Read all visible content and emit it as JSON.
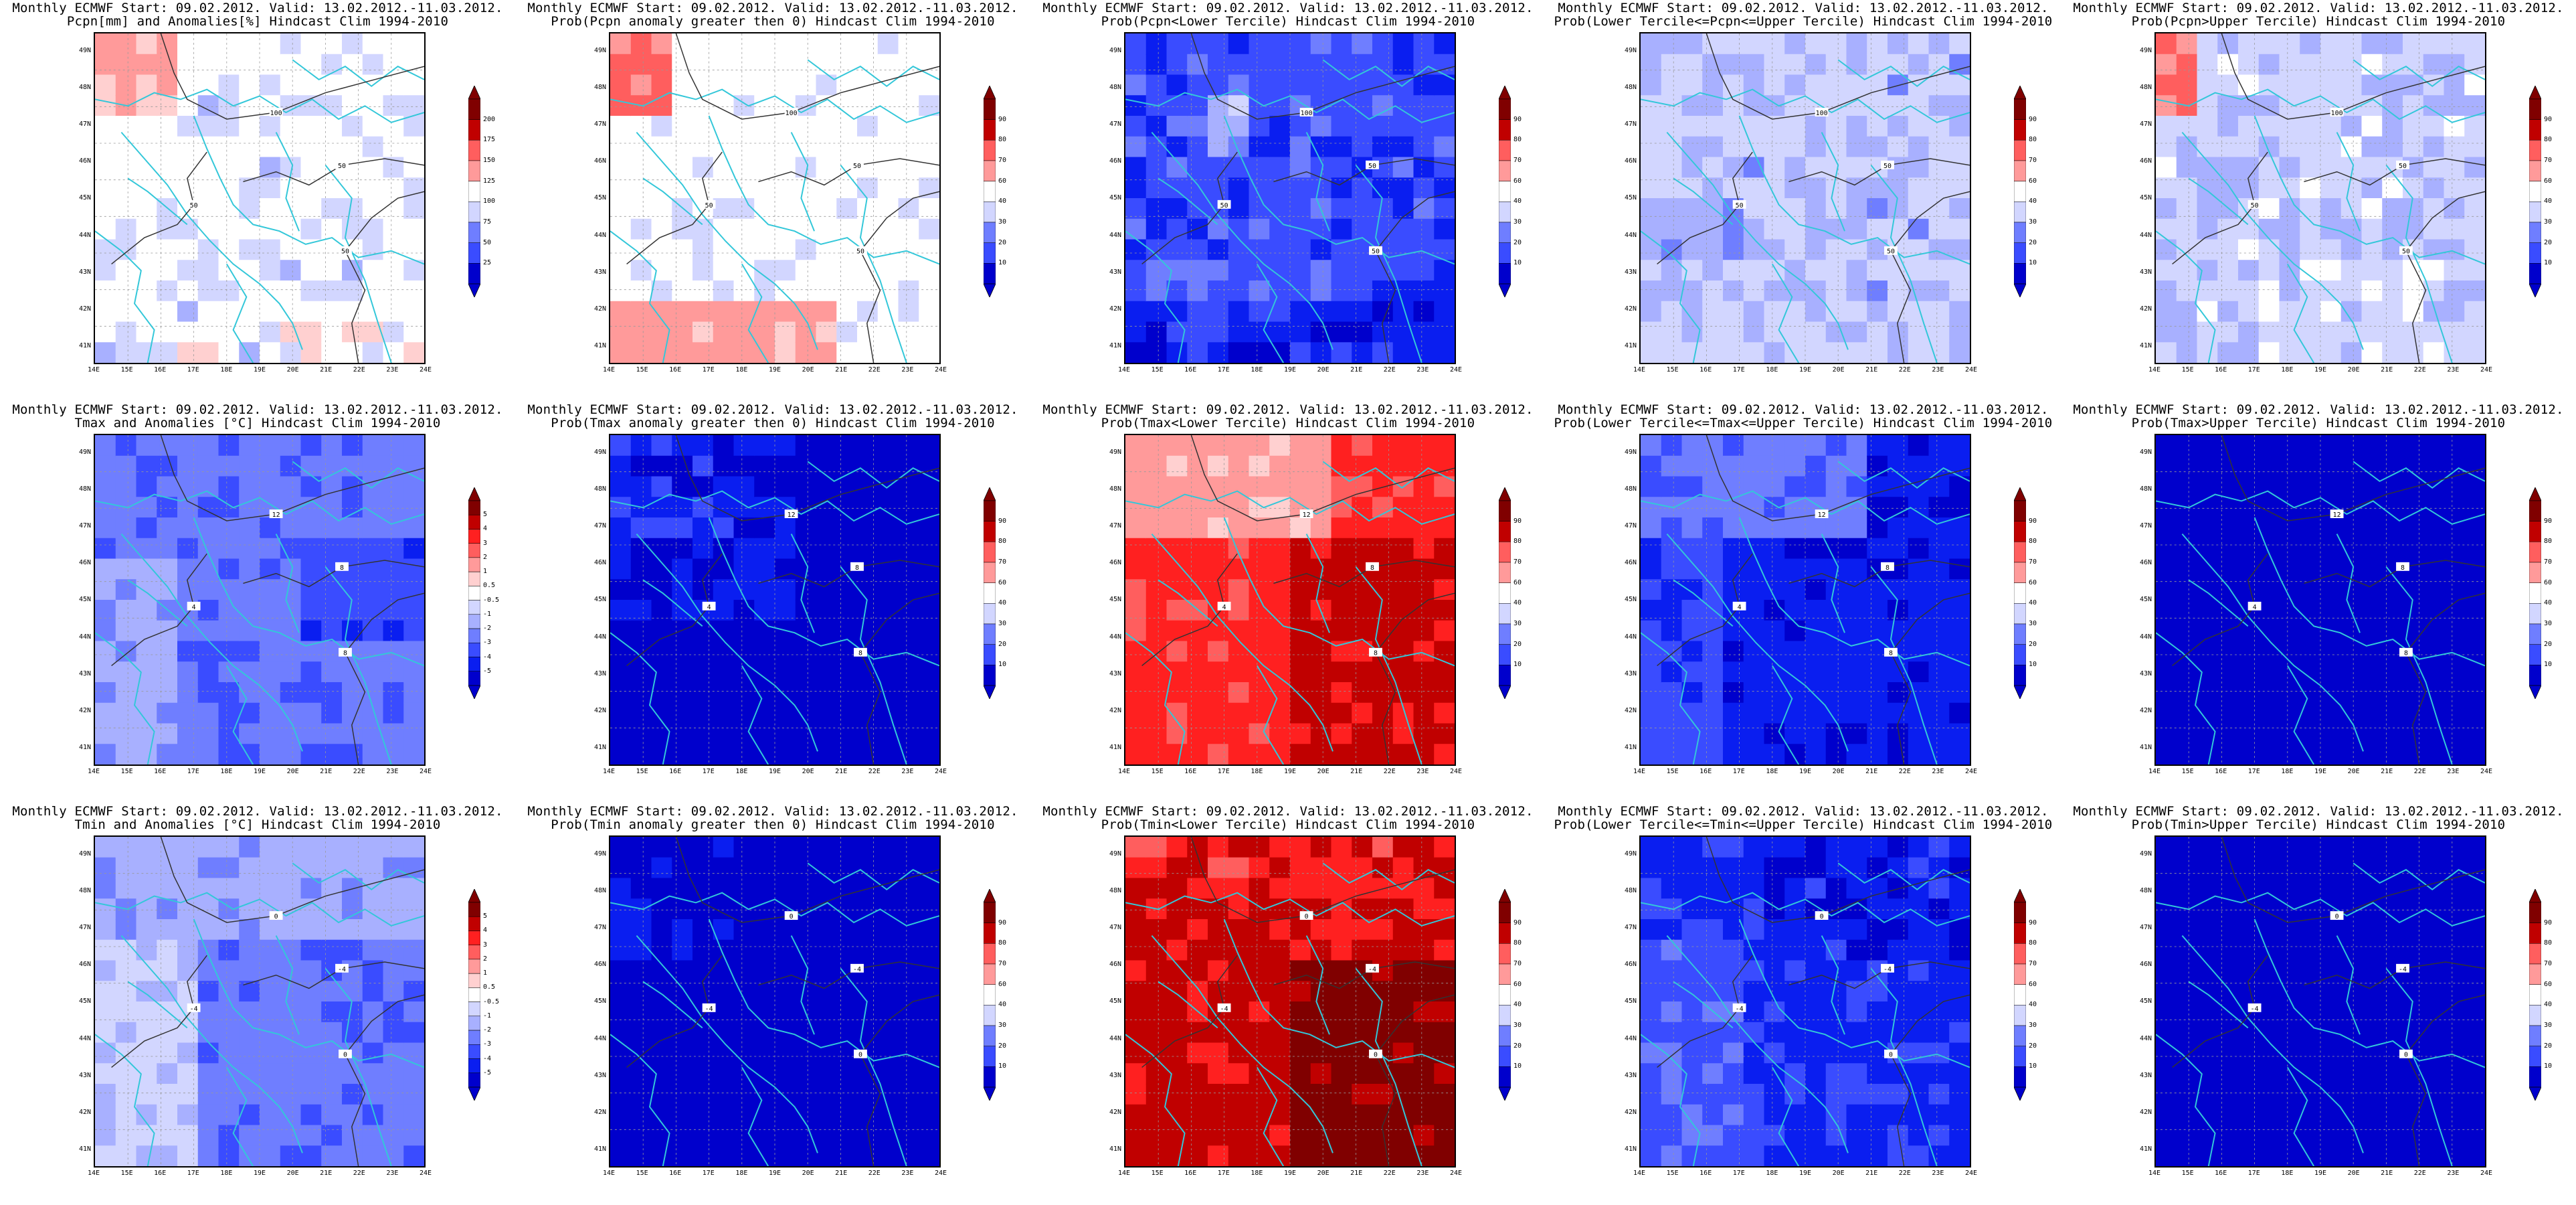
{
  "colors": {
    "levels": [
      "#0000cc",
      "#0a1ef0",
      "#3a4cff",
      "#6f7eff",
      "#a8b0ff",
      "#d2d6ff",
      "#ffffff",
      "#ffd0d0",
      "#ff9a9a",
      "#ff5e5e",
      "#ff2020",
      "#c00000",
      "#800000"
    ],
    "coast": "#33c7d9",
    "contour": "#333333"
  },
  "lat_labels": [
    "49N",
    "48N",
    "47N",
    "46N",
    "45N",
    "44N",
    "43N",
    "42N",
    "41N"
  ],
  "lon_labels": [
    "14E",
    "15E",
    "16E",
    "17E",
    "18E",
    "19E",
    "20E",
    "21E",
    "22E",
    "23E",
    "24E"
  ],
  "colorbars": {
    "pcpn": [
      "200",
      "175",
      "150",
      "125",
      "100",
      "75",
      "50",
      "25"
    ],
    "prob": [
      "90",
      "80",
      "70",
      "60",
      "40",
      "30",
      "20",
      "10"
    ],
    "temp": [
      "5",
      "4",
      "3",
      "2",
      "1",
      "0.5",
      "-0.5",
      "-1",
      "-2",
      "-3",
      "-4",
      "-5"
    ]
  },
  "panels": [
    {
      "title1": "Monthly ECMWF Start: 09.02.2012. Valid: 13.02.2012.-11.03.2012.",
      "title2": "Pcpn[mm] and Anomalies[%] Hindcast Clim 1994-2010",
      "cbar": "pcpn",
      "field": "pcpn_anom",
      "contours": [
        "50",
        "50",
        "100",
        "50",
        "50"
      ]
    },
    {
      "title1": "Monthly ECMWF Start: 09.02.2012. Valid: 13.02.2012.-11.03.2012.",
      "title2": "Prob(Pcpn anomaly greater then 0) Hindcast Clim 1994-2010",
      "cbar": "prob",
      "field": "pcpn_pos",
      "contours": [
        "50",
        "50",
        "100",
        "50",
        "50"
      ]
    },
    {
      "title1": "Monthly ECMWF Start: 09.02.2012. Valid: 13.02.2012.-11.03.2012.",
      "title2": "Prob(Pcpn<Lower Tercile) Hindcast Clim 1994-2010",
      "cbar": "prob",
      "field": "pcpn_low",
      "contours": [
        "50",
        "50",
        "100",
        "50",
        "50"
      ]
    },
    {
      "title1": "Monthly ECMWF Start: 09.02.2012. Valid: 13.02.2012.-11.03.2012.",
      "title2": "Prob(Lower Tercile<=Pcpn<=Upper Tercile) Hindcast Clim 1994-2010",
      "cbar": "prob",
      "field": "pcpn_mid",
      "contours": [
        "50",
        "50",
        "100",
        "50",
        "50"
      ]
    },
    {
      "title1": "Monthly ECMWF Start: 09.02.2012. Valid: 13.02.2012.-11.03.2012.",
      "title2": "Prob(Pcpn>Upper Tercile) Hindcast Clim 1994-2010",
      "cbar": "prob",
      "field": "pcpn_up",
      "contours": [
        "50",
        "50",
        "100",
        "50",
        "50"
      ]
    },
    {
      "title1": "Monthly ECMWF Start: 09.02.2012. Valid: 13.02.2012.-11.03.2012.",
      "title2": "Tmax and Anomalies [°C] Hindcast Clim 1994-2010",
      "cbar": "temp",
      "field": "tmax_anom",
      "contours": [
        "4",
        "8",
        "12",
        "8"
      ]
    },
    {
      "title1": "Monthly ECMWF Start: 09.02.2012. Valid: 13.02.2012.-11.03.2012.",
      "title2": "Prob(Tmax anomaly greater then 0) Hindcast Clim 1994-2010",
      "cbar": "prob",
      "field": "tmax_pos",
      "contours": [
        "4",
        "8",
        "12",
        "8"
      ]
    },
    {
      "title1": "Monthly ECMWF Start: 09.02.2012. Valid: 13.02.2012.-11.03.2012.",
      "title2": "Prob(Tmax<Lower Tercile) Hindcast Clim 1994-2010",
      "cbar": "prob",
      "field": "tmax_low",
      "contours": [
        "4",
        "8",
        "12",
        "8"
      ]
    },
    {
      "title1": "Monthly ECMWF Start: 09.02.2012. Valid: 13.02.2012.-11.03.2012.",
      "title2": "Prob(Lower Tercile<=Tmax<=Upper Tercile) Hindcast Clim 1994-2010",
      "cbar": "prob",
      "field": "tmax_mid",
      "contours": [
        "4",
        "8",
        "12",
        "8"
      ]
    },
    {
      "title1": "Monthly ECMWF Start: 09.02.2012. Valid: 13.02.2012.-11.03.2012.",
      "title2": "Prob(Tmax>Upper Tercile) Hindcast Clim 1994-2010",
      "cbar": "prob",
      "field": "tmax_up",
      "contours": [
        "4",
        "8",
        "12",
        "8"
      ]
    },
    {
      "title1": "Monthly ECMWF Start: 09.02.2012. Valid: 13.02.2012.-11.03.2012.",
      "title2": "Tmin and Anomalies [°C] Hindcast Clim 1994-2010",
      "cbar": "temp",
      "field": "tmin_anom",
      "contours": [
        "-4",
        "-4",
        "0",
        "0"
      ]
    },
    {
      "title1": "Monthly ECMWF Start: 09.02.2012. Valid: 13.02.2012.-11.03.2012.",
      "title2": "Prob(Tmin anomaly greater then 0) Hindcast Clim 1994-2010",
      "cbar": "prob",
      "field": "tmin_pos",
      "contours": [
        "-4",
        "-4",
        "0",
        "0"
      ]
    },
    {
      "title1": "Monthly ECMWF Start: 09.02.2012. Valid: 13.02.2012.-11.03.2012.",
      "title2": "Prob(Tmin<Lower Tercile) Hindcast Clim 1994-2010",
      "cbar": "prob",
      "field": "tmin_low",
      "contours": [
        "-4",
        "-4",
        "0",
        "0"
      ]
    },
    {
      "title1": "Monthly ECMWF Start: 09.02.2012. Valid: 13.02.2012.-11.03.2012.",
      "title2": "Prob(Lower Tercile<=Tmin<=Upper Tercile) Hindcast Clim 1994-2010",
      "cbar": "prob",
      "field": "tmin_mid",
      "contours": [
        "-4",
        "-4",
        "0",
        "0"
      ]
    },
    {
      "title1": "Monthly ECMWF Start: 09.02.2012. Valid: 13.02.2012.-11.03.2012.",
      "title2": "Prob(Tmin>Upper Tercile) Hindcast Clim 1994-2010",
      "cbar": "prob",
      "field": "tmin_up",
      "contours": [
        "-4",
        "-4",
        "0",
        "0"
      ]
    }
  ]
}
